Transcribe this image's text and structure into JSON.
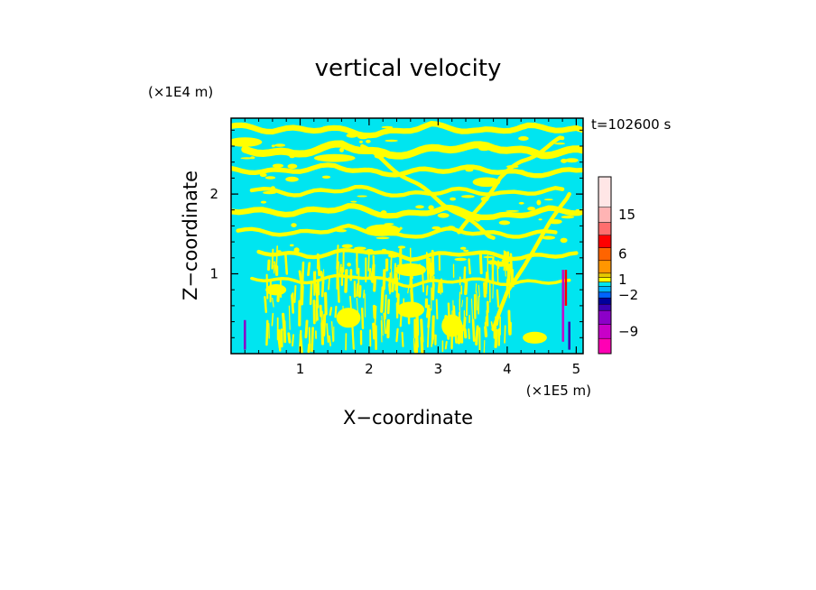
{
  "chart_data": {
    "type": "heatmap",
    "title": "vertical velocity",
    "xlabel": "X−coordinate",
    "ylabel": "Z−coordinate",
    "x_unit": "(×1E5 m)",
    "y_unit": "(×1E4 m)",
    "time_label": "t=102600 s",
    "xlim": [
      0,
      5.1
    ],
    "ylim": [
      0,
      2.95
    ],
    "x_ticks": [
      1,
      2,
      3,
      4,
      5
    ],
    "x_tick_labels": [
      "1",
      "2",
      "3",
      "4",
      "5"
    ],
    "y_ticks": [
      1,
      2
    ],
    "y_tick_labels": [
      "1",
      "2"
    ],
    "background_color": "#00e5f0",
    "field_color": "#ffff00",
    "colorbar": {
      "colors": [
        "#ff00b4",
        "#c800c8",
        "#8c00c8",
        "#3c00b4",
        "#00009c",
        "#0064ff",
        "#00b4ff",
        "#00e5f0",
        "#ffff00",
        "#e6c800",
        "#ff9600",
        "#ff6400",
        "#ff0000",
        "#ff6e6e",
        "#ffb4b4",
        "#ffe6e6"
      ],
      "tick_labels": [
        "-9",
        "-2",
        "1",
        "6",
        "15"
      ],
      "tick_levels": [
        -9,
        -2,
        1,
        6,
        15
      ]
    },
    "yellow_bands": [
      {
        "x": [
          0.0,
          0.6,
          1.4,
          2.1,
          2.9,
          3.6,
          4.3,
          5.1
        ],
        "y": [
          2.85,
          2.8,
          2.82,
          2.74,
          2.86,
          2.78,
          2.84,
          2.8
        ],
        "w": 0.07
      },
      {
        "x": [
          0.2,
          0.9,
          1.6,
          2.3,
          3.0,
          3.7,
          4.5,
          5.1
        ],
        "y": [
          2.55,
          2.5,
          2.62,
          2.48,
          2.57,
          2.6,
          2.5,
          2.55
        ],
        "w": 0.09
      },
      {
        "x": [
          0.0,
          0.7,
          1.5,
          2.2,
          2.9,
          3.6,
          4.3,
          5.1
        ],
        "y": [
          2.3,
          2.28,
          2.35,
          2.25,
          2.3,
          2.32,
          2.24,
          2.3
        ],
        "w": 0.06
      },
      {
        "x": [
          0.3,
          1.0,
          1.8,
          2.5,
          3.2,
          4.0,
          4.8
        ],
        "y": [
          2.06,
          2.0,
          2.08,
          1.98,
          2.05,
          2.0,
          2.06
        ],
        "w": 0.05
      },
      {
        "x": [
          0.0,
          0.9,
          1.7,
          2.4,
          3.1,
          3.8,
          4.6,
          5.1
        ],
        "y": [
          1.8,
          1.76,
          1.84,
          1.72,
          1.82,
          1.7,
          1.8,
          1.78
        ],
        "w": 0.07
      },
      {
        "x": [
          0.1,
          0.9,
          1.7,
          2.5,
          3.2,
          4.0,
          4.7
        ],
        "y": [
          1.55,
          1.5,
          1.58,
          1.46,
          1.55,
          1.48,
          1.52
        ],
        "w": 0.05
      },
      {
        "x": [
          0.4,
          1.1,
          1.9,
          2.6,
          3.4,
          4.2,
          5.0
        ],
        "y": [
          1.28,
          1.22,
          1.3,
          1.2,
          1.27,
          1.2,
          1.26
        ],
        "w": 0.05
      },
      {
        "x": [
          0.3,
          1.0,
          1.8,
          2.6,
          3.3,
          4.1,
          4.9
        ],
        "y": [
          0.95,
          0.9,
          0.98,
          0.86,
          0.93,
          0.88,
          0.92
        ],
        "w": 0.04
      },
      {
        "x": [
          1.9,
          2.3,
          2.8,
          3.3,
          3.8
        ],
        "y": [
          2.6,
          2.35,
          2.05,
          1.75,
          1.45
        ],
        "w": 0.05
      },
      {
        "x": [
          3.3,
          3.6,
          3.9,
          4.2,
          4.5,
          4.8
        ],
        "y": [
          1.5,
          1.85,
          2.2,
          2.4,
          2.55,
          2.7
        ],
        "w": 0.05
      },
      {
        "x": [
          3.8,
          4.0,
          4.3,
          4.6,
          4.9
        ],
        "y": [
          0.3,
          0.75,
          1.2,
          1.6,
          2.0
        ],
        "w": 0.05
      }
    ],
    "yellow_patches": [
      {
        "x": 1.7,
        "y": 0.45,
        "w": 0.35,
        "h": 0.25
      },
      {
        "x": 2.6,
        "y": 0.55,
        "w": 0.4,
        "h": 0.2
      },
      {
        "x": 3.2,
        "y": 0.35,
        "w": 0.3,
        "h": 0.28
      },
      {
        "x": 0.2,
        "y": 2.65,
        "w": 0.5,
        "h": 0.12
      },
      {
        "x": 1.5,
        "y": 2.45,
        "w": 0.6,
        "h": 0.1
      },
      {
        "x": 2.2,
        "y": 1.55,
        "w": 0.5,
        "h": 0.14
      },
      {
        "x": 2.6,
        "y": 1.05,
        "w": 0.45,
        "h": 0.16
      },
      {
        "x": 4.4,
        "y": 0.2,
        "w": 0.35,
        "h": 0.15
      },
      {
        "x": 0.65,
        "y": 0.8,
        "w": 0.3,
        "h": 0.14
      },
      {
        "x": 3.7,
        "y": 2.15,
        "w": 0.4,
        "h": 0.12
      }
    ],
    "yellow_streaks_x_range": [
      0.5,
      4.1
    ],
    "yellow_streaks_y_range": [
      0.0,
      1.1
    ],
    "anomalies": [
      {
        "x": 0.2,
        "y": [
          0.05,
          0.42
        ],
        "color": "#8c00c8"
      },
      {
        "x": 4.81,
        "y": [
          0.15,
          1.05
        ],
        "color": "#c800c8"
      },
      {
        "x": 4.85,
        "y": [
          0.6,
          1.05
        ],
        "color": "#ff0000"
      },
      {
        "x": 4.9,
        "y": [
          0.05,
          0.4
        ],
        "color": "#3c00b4"
      }
    ]
  }
}
